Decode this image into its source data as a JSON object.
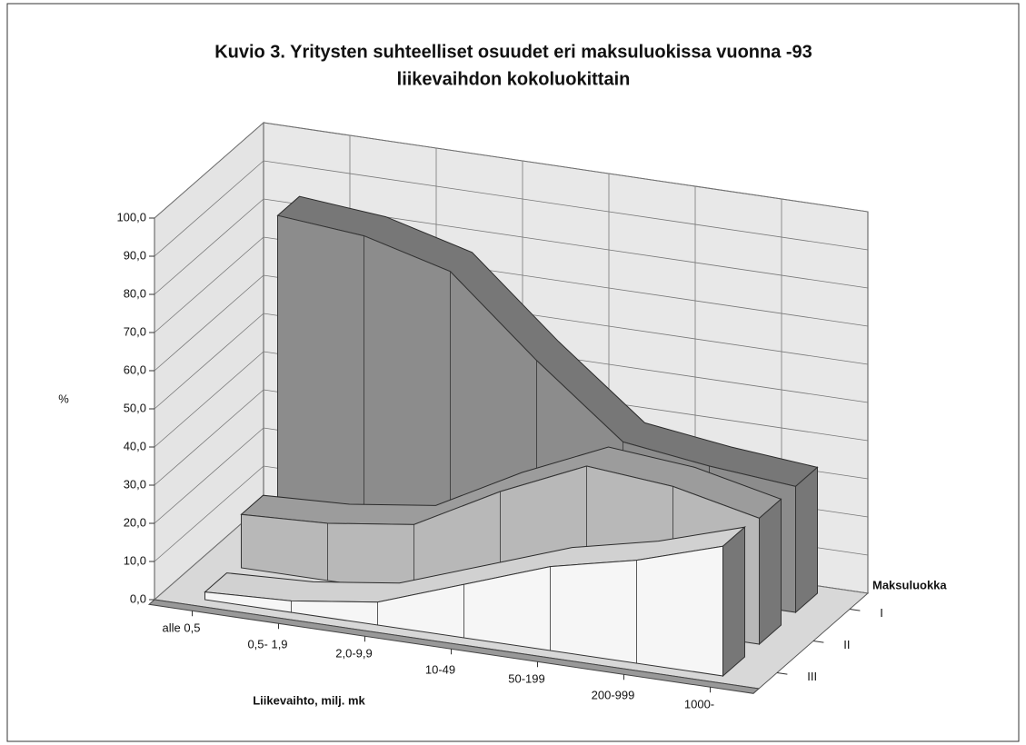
{
  "chart_data": {
    "type": "area3d",
    "title": "Kuvio 3. Yritysten suhteelliset osuudet eri maksuluokissa vuonna -93",
    "subtitle": "liikevaihdon kokoluokittain",
    "y_label": "%",
    "x_label": "Liikevaihto, milj. mk",
    "z_label": "Maksuluokka",
    "categories": [
      "alle 0,5",
      "0,5- 1,9",
      "2,0-9,9",
      "10-49",
      "50-199",
      "200-999",
      "1000-"
    ],
    "series": [
      {
        "name": "I",
        "color": "#8c8c8c",
        "values": [
          84,
          82,
          76,
          56,
          38,
          35,
          33
        ]
      },
      {
        "name": "II",
        "color": "#b8b8b8",
        "values": [
          14,
          15,
          18,
          30,
          40,
          38,
          33
        ]
      },
      {
        "name": "III",
        "color": "#f6f6f6",
        "values": [
          2,
          3,
          6,
          14,
          22,
          27,
          34
        ]
      }
    ],
    "ylim": [
      0,
      100
    ],
    "yticks": [
      {
        "value": 0,
        "label": "0,0"
      },
      {
        "value": 10,
        "label": "10,0"
      },
      {
        "value": 20,
        "label": "20,0"
      },
      {
        "value": 30,
        "label": "30,0"
      },
      {
        "value": 40,
        "label": "40,0"
      },
      {
        "value": 50,
        "label": "50,0"
      },
      {
        "value": 60,
        "label": "60,0"
      },
      {
        "value": 70,
        "label": "70,0"
      },
      {
        "value": 80,
        "label": "80,0"
      },
      {
        "value": 90,
        "label": "90,0"
      },
      {
        "value": 100,
        "label": "100,0"
      }
    ],
    "grid": true
  }
}
